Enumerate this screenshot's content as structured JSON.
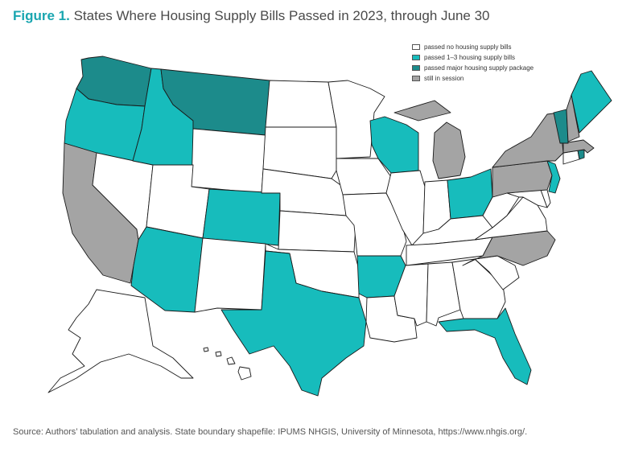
{
  "figure": {
    "label": "Figure 1.",
    "title": "States Where Housing Supply Bills Passed in 2023, through June 30"
  },
  "legend": [
    {
      "key": "none",
      "label": "passed no housing supply bills",
      "color": "#ffffff"
    },
    {
      "key": "some",
      "label": "passed 1–3 housing supply bills",
      "color": "#17bcbc"
    },
    {
      "key": "major",
      "label": "passed major housing supply package",
      "color": "#1c8b8b"
    },
    {
      "key": "session",
      "label": "still in session",
      "color": "#a4a4a4"
    }
  ],
  "source": "Source: Authors’ tabulation and analysis. State boundary shapefile: IPUMS NHGIS, University of Minnesota, https://www.nhgis.org/.",
  "states": {
    "WA": "major",
    "OR": "some",
    "CA": "session",
    "NV": "none",
    "ID": "some",
    "MT": "major",
    "WY": "none",
    "UT": "none",
    "AZ": "some",
    "CO": "some",
    "NM": "none",
    "ND": "none",
    "SD": "none",
    "NE": "none",
    "KS": "none",
    "OK": "none",
    "TX": "some",
    "MN": "none",
    "IA": "none",
    "MO": "none",
    "AR": "some",
    "LA": "none",
    "WI": "some",
    "IL": "none",
    "MI": "session",
    "IN": "none",
    "OH": "some",
    "KY": "none",
    "TN": "none",
    "MS": "none",
    "AL": "none",
    "GA": "none",
    "FL": "some",
    "SC": "none",
    "NC": "session",
    "VA": "none",
    "WV": "none",
    "MD": "none",
    "DE": "none",
    "PA": "session",
    "NY": "session",
    "NJ": "some",
    "CT": "none",
    "RI": "major",
    "MA": "session",
    "VT": "major",
    "NH": "session",
    "ME": "some",
    "AK": "none",
    "HI": "none"
  }
}
